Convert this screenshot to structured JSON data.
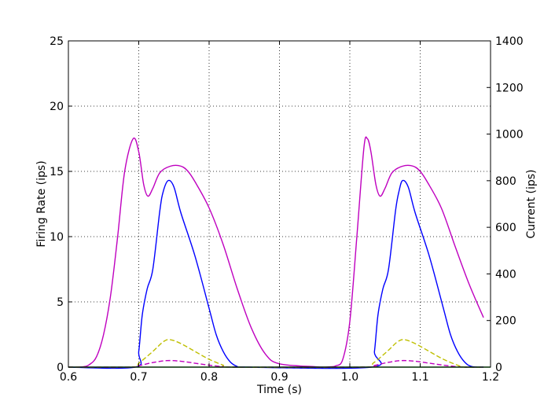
{
  "chart_data": {
    "type": "line",
    "xlabel": "Time (s)",
    "ylabel": "Firing Rate (ips)",
    "y2label": "Current (ips)",
    "xlim": [
      0.6,
      1.2
    ],
    "ylim": [
      0,
      25
    ],
    "y2lim": [
      0,
      1400
    ],
    "xticks": [
      "0.6",
      "0.7",
      "0.8",
      "0.9",
      "1.0",
      "1.1",
      "1.2"
    ],
    "yticks": [
      "0",
      "5",
      "10",
      "15",
      "20",
      "25"
    ],
    "y2ticks": [
      "0",
      "200",
      "400",
      "600",
      "800",
      "1000",
      "1200",
      "1400"
    ],
    "grid": true,
    "series": [
      {
        "color": "#bf00bf",
        "style": "solid",
        "axis": "left",
        "points": [
          [
            0.6,
            0
          ],
          [
            0.62,
            0.02
          ],
          [
            0.63,
            0.2
          ],
          [
            0.64,
            0.8
          ],
          [
            0.65,
            2.5
          ],
          [
            0.66,
            5.5
          ],
          [
            0.67,
            10
          ],
          [
            0.68,
            15
          ],
          [
            0.692,
            17.5
          ],
          [
            0.7,
            16.5
          ],
          [
            0.707,
            14
          ],
          [
            0.713,
            13.1
          ],
          [
            0.72,
            13.7
          ],
          [
            0.73,
            14.9
          ],
          [
            0.745,
            15.4
          ],
          [
            0.76,
            15.4
          ],
          [
            0.77,
            15.0
          ],
          [
            0.78,
            14.2
          ],
          [
            0.8,
            12.2
          ],
          [
            0.82,
            9.4
          ],
          [
            0.84,
            6.0
          ],
          [
            0.86,
            3.0
          ],
          [
            0.88,
            1.0
          ],
          [
            0.9,
            0.25
          ],
          [
            0.95,
            0.03
          ],
          [
            0.96,
            0
          ],
          [
            0.97,
            0.02
          ],
          [
            0.98,
            0.1
          ],
          [
            0.99,
            0.6
          ],
          [
            1.0,
            3.5
          ],
          [
            1.01,
            10
          ],
          [
            1.02,
            16.8
          ],
          [
            1.025,
            17.5
          ],
          [
            1.03,
            16.5
          ],
          [
            1.037,
            14
          ],
          [
            1.043,
            13.1
          ],
          [
            1.05,
            13.7
          ],
          [
            1.06,
            14.9
          ],
          [
            1.075,
            15.4
          ],
          [
            1.09,
            15.4
          ],
          [
            1.1,
            15.0
          ],
          [
            1.11,
            14.2
          ],
          [
            1.13,
            12.2
          ],
          [
            1.15,
            9.2
          ],
          [
            1.17,
            6.3
          ],
          [
            1.19,
            3.8
          ]
        ]
      },
      {
        "color": "#0000ff",
        "style": "solid",
        "axis": "left",
        "points": [
          [
            0.6,
            0
          ],
          [
            0.695,
            0
          ],
          [
            0.7,
            1.2
          ],
          [
            0.705,
            4
          ],
          [
            0.712,
            6
          ],
          [
            0.72,
            7.5
          ],
          [
            0.73,
            12
          ],
          [
            0.735,
            13.5
          ],
          [
            0.742,
            14.3
          ],
          [
            0.75,
            13.8
          ],
          [
            0.76,
            11.8
          ],
          [
            0.78,
            8.5
          ],
          [
            0.8,
            4.5
          ],
          [
            0.81,
            2.5
          ],
          [
            0.82,
            1.2
          ],
          [
            0.83,
            0.4
          ],
          [
            0.84,
            0.05
          ],
          [
            0.85,
            0
          ],
          [
            1.03,
            0
          ],
          [
            1.035,
            1.2
          ],
          [
            1.04,
            4
          ],
          [
            1.047,
            6
          ],
          [
            1.055,
            7.5
          ],
          [
            1.065,
            12
          ],
          [
            1.07,
            13.5
          ],
          [
            1.075,
            14.3
          ],
          [
            1.083,
            13.8
          ],
          [
            1.093,
            11.8
          ],
          [
            1.113,
            8.5
          ],
          [
            1.133,
            4.5
          ],
          [
            1.143,
            2.5
          ],
          [
            1.153,
            1.2
          ],
          [
            1.163,
            0.4
          ],
          [
            1.173,
            0.05
          ],
          [
            1.19,
            0
          ]
        ]
      },
      {
        "color": "#bfbf00",
        "style": "dashed",
        "axis": "left",
        "points": [
          [
            0.6,
            0
          ],
          [
            0.69,
            0
          ],
          [
            0.7,
            0.3
          ],
          [
            0.72,
            1.2
          ],
          [
            0.735,
            1.95
          ],
          [
            0.745,
            2.1
          ],
          [
            0.76,
            1.8
          ],
          [
            0.78,
            1.2
          ],
          [
            0.8,
            0.6
          ],
          [
            0.82,
            0.15
          ],
          [
            0.83,
            0
          ],
          [
            1.02,
            0
          ],
          [
            1.033,
            0.3
          ],
          [
            1.053,
            1.2
          ],
          [
            1.068,
            1.95
          ],
          [
            1.078,
            2.1
          ],
          [
            1.093,
            1.8
          ],
          [
            1.113,
            1.2
          ],
          [
            1.133,
            0.6
          ],
          [
            1.153,
            0.15
          ],
          [
            1.163,
            0
          ],
          [
            1.19,
            0
          ]
        ]
      },
      {
        "color": "#bf00bf",
        "style": "dashed",
        "axis": "left",
        "points": [
          [
            0.6,
            0
          ],
          [
            0.69,
            0
          ],
          [
            0.7,
            0.1
          ],
          [
            0.72,
            0.35
          ],
          [
            0.74,
            0.5
          ],
          [
            0.76,
            0.45
          ],
          [
            0.78,
            0.3
          ],
          [
            0.8,
            0.15
          ],
          [
            0.82,
            0.03
          ],
          [
            0.83,
            0
          ],
          [
            1.02,
            0
          ],
          [
            1.033,
            0.1
          ],
          [
            1.053,
            0.35
          ],
          [
            1.073,
            0.5
          ],
          [
            1.093,
            0.45
          ],
          [
            1.113,
            0.3
          ],
          [
            1.133,
            0.15
          ],
          [
            1.153,
            0.03
          ],
          [
            1.163,
            0
          ],
          [
            1.19,
            0
          ]
        ]
      },
      {
        "color": "#008000",
        "style": "solid",
        "axis": "left",
        "points": [
          [
            0.6,
            0
          ],
          [
            1.2,
            0
          ]
        ]
      }
    ]
  }
}
